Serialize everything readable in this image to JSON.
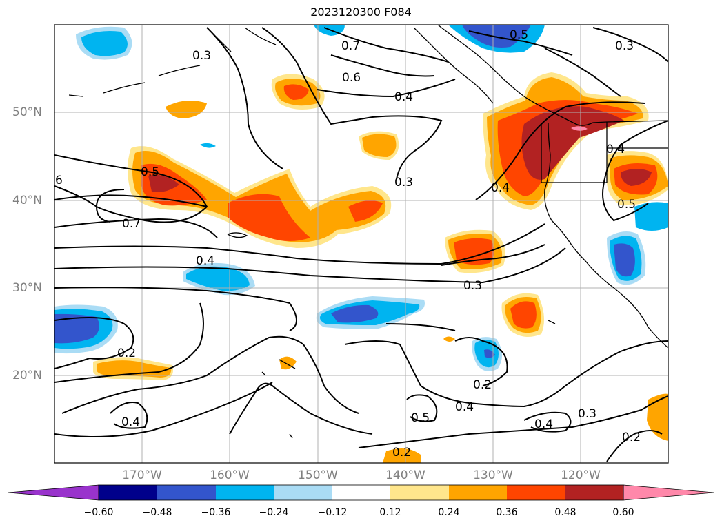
{
  "title": "2023120300 F084",
  "lat_labels": [
    "50°N",
    "40°N",
    "30°N",
    "20°N"
  ],
  "lon_labels": [
    "170°W",
    "160°W",
    "150°W",
    "140°W",
    "130°W",
    "120°W"
  ],
  "colorbar": {
    "ticks": [
      "-0.60",
      "-0.48",
      "-0.36",
      "-0.24",
      "-0.12",
      "0.12",
      "0.24",
      "0.36",
      "0.48",
      "0.60"
    ],
    "colors": [
      "#9933cc",
      "#00008b",
      "#3355cc",
      "#00b4f0",
      "#aadcf5",
      "#ffffff",
      "#ffe68c",
      "#ffa500",
      "#ff4500",
      "#b22222",
      "#ff88aa"
    ]
  },
  "contour_labels": [
    "0.3",
    "0.7",
    "0.6",
    "0.4",
    "0.3",
    "0.5",
    "6",
    "0.7",
    "0.3",
    "0.4",
    "0.4",
    "0.3",
    "0.4",
    "0.5",
    "0.2",
    "0.2",
    "0.4",
    "0.5",
    "0.4",
    "0.4",
    "0.3",
    "0.2",
    "0.2",
    "0.5"
  ]
}
